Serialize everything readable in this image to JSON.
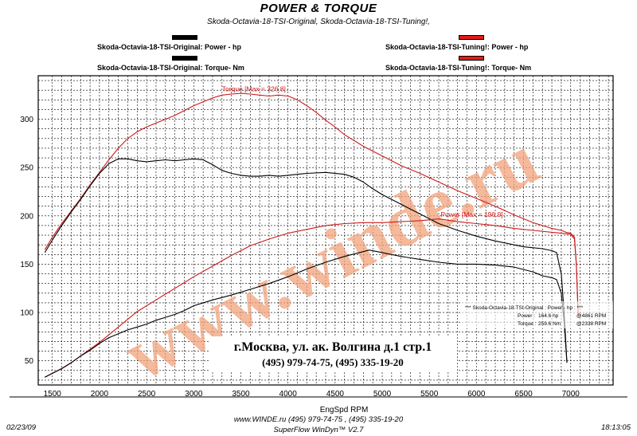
{
  "header": {
    "title": "POWER & TORQUE",
    "subtitle": "Skoda-Octavia-18-TSI-Original, Skoda-Octavia-18-TSI-Tuning!,"
  },
  "legend": {
    "original_power": "Skoda-Octavia-18-TSI-Original: Power -  hp",
    "original_torque": "Skoda-Octavia-18-TSI-Original: Torque-  Nm",
    "tuning_power": "Skoda-Octavia-18-TSI-Tuning!: Power -  hp",
    "tuning_torque": "Skoda-Octavia-18-TSI-Tuning!: Torque-  Nm"
  },
  "colors": {
    "original": "#000000",
    "tuning": "#cc1a1a",
    "watermark": "#f2a27a",
    "tuning_swatch_fill": "#e01b1b"
  },
  "watermark": "www.winde.ru",
  "address": {
    "line1": "г.Москва, ул. ак. Волгина д.1 стр.1",
    "line2": "(495) 979-74-75, (495) 335-19-20"
  },
  "max_box": {
    "title": "*** Skoda-Octavia-18-TSI-Original : Power - hp : ***",
    "power_label": "Power :",
    "power_value": "164.6 hp",
    "power_rpm": "@4861 RPM",
    "torque_label": "Torque :",
    "torque_value": "259.6 Nm",
    "torque_rpm": "@2338 RPM"
  },
  "footer": {
    "date": "02/23/09",
    "contact": "www.WINDE.ru  (495) 979-74-75 , (495) 335-19-20",
    "software": "SuperFlow WinDyn™ V2.7",
    "time": "18:13:05"
  },
  "chart_data": {
    "type": "line",
    "title": "POWER & TORQUE",
    "xlabel": "EngSpd  RPM",
    "ylabel": "",
    "xlim": [
      1350,
      7450
    ],
    "ylim": [
      25,
      345
    ],
    "grid": true,
    "x_ticks": [
      1500,
      2000,
      2500,
      3000,
      3500,
      4000,
      4500,
      5000,
      5500,
      6000,
      6500,
      7000
    ],
    "y_ticks": [
      50,
      100,
      150,
      200,
      250,
      300
    ],
    "annotations": [
      {
        "text": "Torque [Max = 326.8]",
        "x": 3300,
        "y": 329,
        "series": "Skoda-Octavia-18-TSI-Tuning!: Torque"
      },
      {
        "text": "Power  [Max = 196.9]",
        "x": 5620,
        "y": 199,
        "series": "Skoda-Octavia-18-TSI-Tuning!: Power"
      }
    ],
    "series": [
      {
        "name": "Skoda-Octavia-18-TSI-Tuning!: Torque",
        "color": "#cc1a1a",
        "x": [
          1420,
          1500,
          1600,
          1700,
          1800,
          1900,
          2000,
          2100,
          2200,
          2300,
          2400,
          2500,
          2600,
          2700,
          2800,
          2900,
          3000,
          3100,
          3200,
          3300,
          3400,
          3500,
          3600,
          3700,
          3800,
          3900,
          4000,
          4100,
          4200,
          4300,
          4400,
          4500,
          4600,
          4700,
          4800,
          4900,
          5000,
          5200,
          5400,
          5600,
          5800,
          6000,
          6200,
          6400,
          6600,
          6700,
          6800,
          6900,
          6950,
          7000,
          7040,
          7060,
          7080
        ],
        "y": [
          165,
          178,
          192,
          205,
          218,
          232,
          245,
          258,
          270,
          280,
          287,
          292,
          296,
          300,
          304,
          309,
          314,
          318,
          322,
          325,
          326,
          326.8,
          326,
          325,
          324,
          325,
          324,
          320,
          314,
          307,
          299,
          292,
          284,
          278,
          272,
          267,
          262,
          252,
          244,
          235,
          226,
          218,
          210,
          201,
          193,
          190,
          187,
          185,
          183,
          182,
          178,
          150,
          96
        ]
      },
      {
        "name": "Skoda-Octavia-18-TSI-Original: Torque",
        "color": "#000000",
        "x": [
          1420,
          1500,
          1600,
          1700,
          1800,
          1900,
          2000,
          2100,
          2200,
          2300,
          2400,
          2500,
          2600,
          2700,
          2800,
          2900,
          3000,
          3100,
          3200,
          3300,
          3400,
          3500,
          3600,
          3700,
          3800,
          3900,
          4000,
          4200,
          4400,
          4600,
          4700,
          4800,
          4900,
          5000,
          5200,
          5400,
          5600,
          5800,
          6000,
          6200,
          6400,
          6500,
          6600,
          6700,
          6800,
          6850,
          6900,
          6930,
          6960
        ],
        "y": [
          162,
          175,
          190,
          204,
          217,
          231,
          244,
          254,
          259,
          259,
          257,
          256,
          257,
          258,
          257,
          258,
          259,
          258,
          253,
          247,
          244,
          242,
          241,
          241,
          242,
          241,
          242,
          244,
          245,
          243,
          240,
          235,
          228,
          222,
          212,
          202,
          192,
          185,
          179,
          174,
          170,
          168,
          167,
          166,
          164,
          162,
          140,
          100,
          48
        ]
      },
      {
        "name": "Skoda-Octavia-18-TSI-Tuning!: Power",
        "color": "#cc1a1a",
        "x": [
          1420,
          1500,
          1600,
          1700,
          1800,
          1900,
          2000,
          2100,
          2200,
          2300,
          2400,
          2500,
          2600,
          2700,
          2800,
          2900,
          3000,
          3200,
          3400,
          3600,
          3800,
          4000,
          4200,
          4400,
          4600,
          4800,
          5000,
          5200,
          5400,
          5600,
          5800,
          6000,
          6200,
          6400,
          6600,
          6800,
          6900,
          7000,
          7040,
          7060,
          7080
        ],
        "y": [
          33,
          37,
          42,
          48,
          55,
          62,
          69,
          77,
          85,
          93,
          101,
          107,
          113,
          119,
          125,
          131,
          137,
          148,
          159,
          169,
          176,
          182,
          186,
          190,
          192,
          193,
          193,
          194,
          195,
          196.9,
          194,
          192,
          190,
          187,
          185,
          183,
          182,
          181,
          176,
          150,
          98
        ]
      },
      {
        "name": "Skoda-Octavia-18-TSI-Original: Power",
        "color": "#000000",
        "x": [
          1420,
          1500,
          1600,
          1700,
          1800,
          1900,
          2000,
          2100,
          2200,
          2300,
          2400,
          2500,
          2600,
          2700,
          2800,
          2900,
          3000,
          3200,
          3400,
          3600,
          3800,
          4000,
          4200,
          4400,
          4600,
          4800,
          4861,
          5000,
          5200,
          5400,
          5600,
          5800,
          6000,
          6200,
          6400,
          6600,
          6700,
          6800,
          6850,
          6900,
          6930,
          6960
        ],
        "y": [
          33,
          37,
          42,
          48,
          55,
          61,
          68,
          74,
          78,
          82,
          85,
          88,
          92,
          95,
          98,
          102,
          107,
          113,
          118,
          124,
          130,
          137,
          145,
          152,
          158,
          163,
          164.6,
          162,
          158,
          155,
          152,
          150,
          150,
          149,
          147,
          142,
          138,
          136,
          134,
          120,
          90,
          48
        ]
      }
    ]
  }
}
